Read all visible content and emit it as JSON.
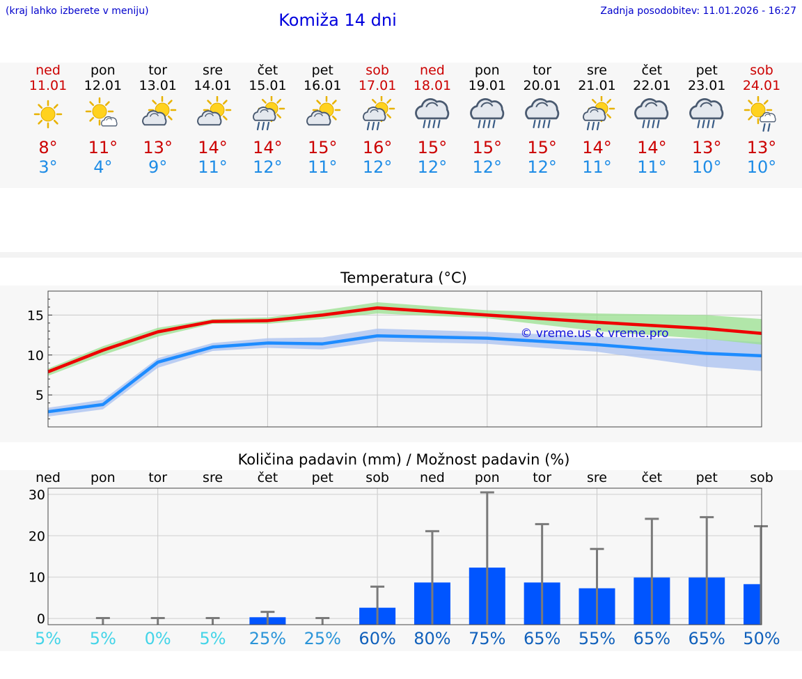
{
  "header": {
    "note": "(kraj lahko izberete v meniju)",
    "title": "Komiža 14 dni",
    "updated": "Zadnja posodobitev: 11.01.2026 - 16:27"
  },
  "days": [
    {
      "name": "ned",
      "date": "11.01",
      "weekend": true,
      "icon": "sun-icon",
      "max": "8°",
      "min": "3°"
    },
    {
      "name": "pon",
      "date": "12.01",
      "weekend": false,
      "icon": "sun-small-cloud-icon",
      "max": "11°",
      "min": "4°"
    },
    {
      "name": "tor",
      "date": "13.01",
      "weekend": false,
      "icon": "sun-cloud-icon",
      "max": "13°",
      "min": "9°"
    },
    {
      "name": "sre",
      "date": "14.01",
      "weekend": false,
      "icon": "sun-cloud-icon",
      "max": "14°",
      "min": "11°"
    },
    {
      "name": "čet",
      "date": "15.01",
      "weekend": false,
      "icon": "sun-cloud-rain-icon",
      "max": "14°",
      "min": "12°"
    },
    {
      "name": "pet",
      "date": "16.01",
      "weekend": false,
      "icon": "sun-cloud-icon",
      "max": "15°",
      "min": "11°"
    },
    {
      "name": "sob",
      "date": "17.01",
      "weekend": true,
      "icon": "sun-cloud-rain-icon",
      "max": "16°",
      "min": "12°"
    },
    {
      "name": "ned",
      "date": "18.01",
      "weekend": true,
      "icon": "cloud-rain-icon",
      "max": "15°",
      "min": "12°"
    },
    {
      "name": "pon",
      "date": "19.01",
      "weekend": false,
      "icon": "cloud-rain-icon",
      "max": "15°",
      "min": "12°"
    },
    {
      "name": "tor",
      "date": "20.01",
      "weekend": false,
      "icon": "cloud-rain-icon",
      "max": "15°",
      "min": "12°"
    },
    {
      "name": "sre",
      "date": "21.01",
      "weekend": false,
      "icon": "sun-cloud-rain-icon",
      "max": "14°",
      "min": "11°"
    },
    {
      "name": "čet",
      "date": "22.01",
      "weekend": false,
      "icon": "cloud-rain-icon",
      "max": "14°",
      "min": "11°"
    },
    {
      "name": "pet",
      "date": "23.01",
      "weekend": false,
      "icon": "cloud-rain-icon",
      "max": "13°",
      "min": "10°"
    },
    {
      "name": "sob",
      "date": "24.01",
      "weekend": true,
      "icon": "sun-small-cloud-rain-icon",
      "max": "13°",
      "min": "10°"
    }
  ],
  "chart_data": [
    {
      "type": "line",
      "title": "Temperatura (°C)",
      "watermark": "© vreme.us & vreme.pro",
      "ylim": [
        1,
        18
      ],
      "yticks": [
        5,
        10,
        15
      ],
      "x": [
        0,
        1,
        2,
        3,
        4,
        5,
        6,
        8,
        10,
        12,
        13
      ],
      "series": [
        {
          "name": "max",
          "color": "#ee0000",
          "values": [
            7.9,
            10.6,
            12.9,
            14.2,
            14.3,
            15.0,
            15.9,
            15.0,
            14.1,
            13.3,
            12.7
          ]
        },
        {
          "name": "max-range-low",
          "color": "#99e08f",
          "values": [
            7.4,
            10.0,
            12.3,
            13.9,
            13.9,
            14.5,
            15.2,
            14.6,
            13.0,
            12.0,
            11.3
          ]
        },
        {
          "name": "max-range-high",
          "color": "#99e08f",
          "values": [
            8.3,
            11.1,
            13.4,
            14.5,
            14.7,
            15.6,
            16.6,
            15.6,
            15.2,
            15.0,
            14.5
          ]
        },
        {
          "name": "min",
          "color": "#1e8cff",
          "values": [
            2.9,
            3.8,
            9.1,
            11.0,
            11.5,
            11.4,
            12.4,
            12.1,
            11.3,
            10.2,
            9.9
          ]
        },
        {
          "name": "min-range-low",
          "color": "#a8c0f0",
          "values": [
            2.3,
            3.2,
            8.4,
            10.5,
            10.9,
            10.7,
            11.7,
            11.4,
            10.4,
            8.5,
            8.0
          ]
        },
        {
          "name": "min-range-high",
          "color": "#a8c0f0",
          "values": [
            3.4,
            4.4,
            9.6,
            11.5,
            12.1,
            12.2,
            13.3,
            12.9,
            12.3,
            12.0,
            11.6
          ]
        }
      ]
    },
    {
      "type": "bar",
      "title": "Količina padavin (mm) / Možnost padavin (%)",
      "ylim": [
        -1.5,
        31.5
      ],
      "yticks": [
        0,
        10,
        20,
        30
      ],
      "categories": [
        "ned",
        "pon",
        "tor",
        "sre",
        "čet",
        "pet",
        "sob",
        "ned",
        "pon",
        "tor",
        "sre",
        "čet",
        "pet",
        "sob"
      ],
      "values": [
        0,
        0,
        0,
        0,
        0.3,
        0,
        2.6,
        8.7,
        12.3,
        8.7,
        7.3,
        9.9,
        9.9,
        8.3
      ],
      "error_high": [
        0,
        0.1,
        0.1,
        0.1,
        1.6,
        0.1,
        7.7,
        21.1,
        30.5,
        22.8,
        16.8,
        24.1,
        24.5,
        22.3
      ],
      "probability": [
        "5%",
        "5%",
        "0%",
        "5%",
        "25%",
        "25%",
        "60%",
        "80%",
        "75%",
        "65%",
        "55%",
        "65%",
        "65%",
        "50%"
      ],
      "probability_colors": [
        "#44d4e8",
        "#44d4e8",
        "#44d4e8",
        "#44d4e8",
        "#2a94d8",
        "#2a94d8",
        "#1060bb",
        "#1060bb",
        "#1060bb",
        "#1060bb",
        "#1060bb",
        "#1060bb",
        "#1060bb",
        "#1060bb"
      ]
    }
  ]
}
